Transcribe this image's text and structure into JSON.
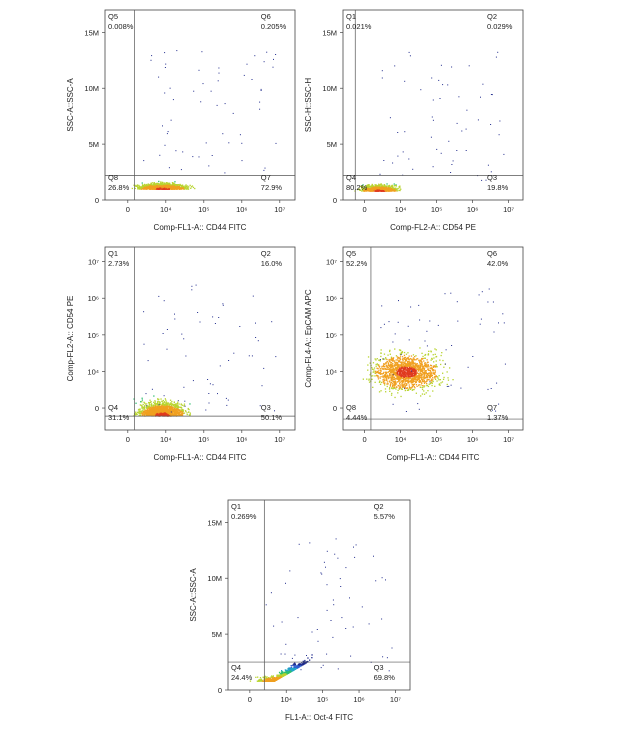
{
  "chart_data": [
    {
      "type": "scatter",
      "panel": "top-left",
      "xlabel": "Comp-FL1-A:: CD44 FITC",
      "ylabel": "SSC-A::SSC-A",
      "x_scale": "biexponential",
      "y_scale": "linear",
      "x_ticks": [
        "0",
        "10⁴",
        "10⁵",
        "10⁶",
        "10⁷"
      ],
      "y_ticks": [
        "0",
        "5M",
        "10M",
        "15M"
      ],
      "gate": {
        "x": 15000,
        "y": 2200000
      },
      "quadrants": [
        {
          "name": "Q5",
          "value": "0.008%",
          "position": "top-left"
        },
        {
          "name": "Q6",
          "value": "0.205%",
          "position": "top-right"
        },
        {
          "name": "Q8",
          "value": "26.8%",
          "position": "bottom-left"
        },
        {
          "name": "Q7",
          "value": "72.9%",
          "position": "bottom-right"
        }
      ]
    },
    {
      "type": "scatter",
      "panel": "top-right",
      "xlabel": "Comp-FL2-A:: CD54 PE",
      "ylabel": "SSC-H::SSC-H",
      "x_scale": "biexponential",
      "y_scale": "linear",
      "x_ticks": [
        "0",
        "10⁴",
        "10⁵",
        "10⁶",
        "10⁷"
      ],
      "y_ticks": [
        "0",
        "5M",
        "10M",
        "15M"
      ],
      "gate": {
        "x": 5500,
        "y": 2200000
      },
      "quadrants": [
        {
          "name": "Q1",
          "value": "0.021%",
          "position": "top-left"
        },
        {
          "name": "Q2",
          "value": "0.029%",
          "position": "top-right"
        },
        {
          "name": "Q4",
          "value": "80.2%",
          "position": "bottom-left"
        },
        {
          "name": "Q3",
          "value": "19.8%",
          "position": "bottom-right"
        }
      ]
    },
    {
      "type": "scatter",
      "panel": "middle-left",
      "xlabel": "Comp-FL1-A:: CD44 FITC",
      "ylabel": "Comp-FL2-A:: CD54 PE",
      "x_scale": "biexponential",
      "y_scale": "biexponential",
      "x_ticks": [
        "0",
        "10⁴",
        "10⁵",
        "10⁶",
        "10⁷"
      ],
      "y_ticks": [
        "0",
        "10⁴",
        "10⁵",
        "10⁶",
        "10⁷"
      ],
      "gate": {
        "x": 15000,
        "y": 6000
      },
      "quadrants": [
        {
          "name": "Q1",
          "value": "2.73%",
          "position": "top-left"
        },
        {
          "name": "Q2",
          "value": "16.0%",
          "position": "top-right"
        },
        {
          "name": "Q4",
          "value": "31.1%",
          "position": "bottom-left"
        },
        {
          "name": "Q3",
          "value": "50.1%",
          "position": "bottom-right"
        }
      ]
    },
    {
      "type": "scatter",
      "panel": "middle-right",
      "xlabel": "Comp-FL1-A:: CD44 FITC",
      "ylabel": "Comp-FL4-A:: EpCAM APC",
      "x_scale": "biexponential",
      "y_scale": "biexponential",
      "x_ticks": [
        "0",
        "10⁴",
        "10⁵",
        "10⁶",
        "10⁷"
      ],
      "y_ticks": [
        "0",
        "10⁴",
        "10⁵",
        "10⁶",
        "10⁷"
      ],
      "gate": {
        "x": 15000,
        "y": 5000
      },
      "quadrants": [
        {
          "name": "Q5",
          "value": "52.2%",
          "position": "top-left"
        },
        {
          "name": "Q6",
          "value": "42.0%",
          "position": "top-right"
        },
        {
          "name": "Q8",
          "value": "4.44%",
          "position": "bottom-left"
        },
        {
          "name": "Q7",
          "value": "1.37%",
          "position": "bottom-right"
        }
      ]
    },
    {
      "type": "scatter",
      "panel": "bottom-center",
      "xlabel": "FL1-A:: Oct-4 FITC",
      "ylabel": "SSC-A::SSC-A",
      "x_scale": "biexponential",
      "y_scale": "linear",
      "x_ticks": [
        "0",
        "10⁴",
        "10⁵",
        "10⁶",
        "10⁷"
      ],
      "y_ticks": [
        "0",
        "5M",
        "10M",
        "15M"
      ],
      "gate": {
        "x": 25000,
        "y": 2500000
      },
      "quadrants": [
        {
          "name": "Q1",
          "value": "0.269%",
          "position": "top-left"
        },
        {
          "name": "Q2",
          "value": "5.57%",
          "position": "top-right"
        },
        {
          "name": "Q4",
          "value": "24.4%",
          "position": "bottom-left"
        },
        {
          "name": "Q3",
          "value": "69.8%",
          "position": "bottom-right"
        }
      ]
    }
  ],
  "colors": {
    "density": [
      "#1f2a8c",
      "#2f5fd0",
      "#22a7c9",
      "#2fbf71",
      "#b8d430",
      "#f0a020",
      "#e03a1e"
    ],
    "axis": "#444444",
    "gate": "#555555"
  }
}
